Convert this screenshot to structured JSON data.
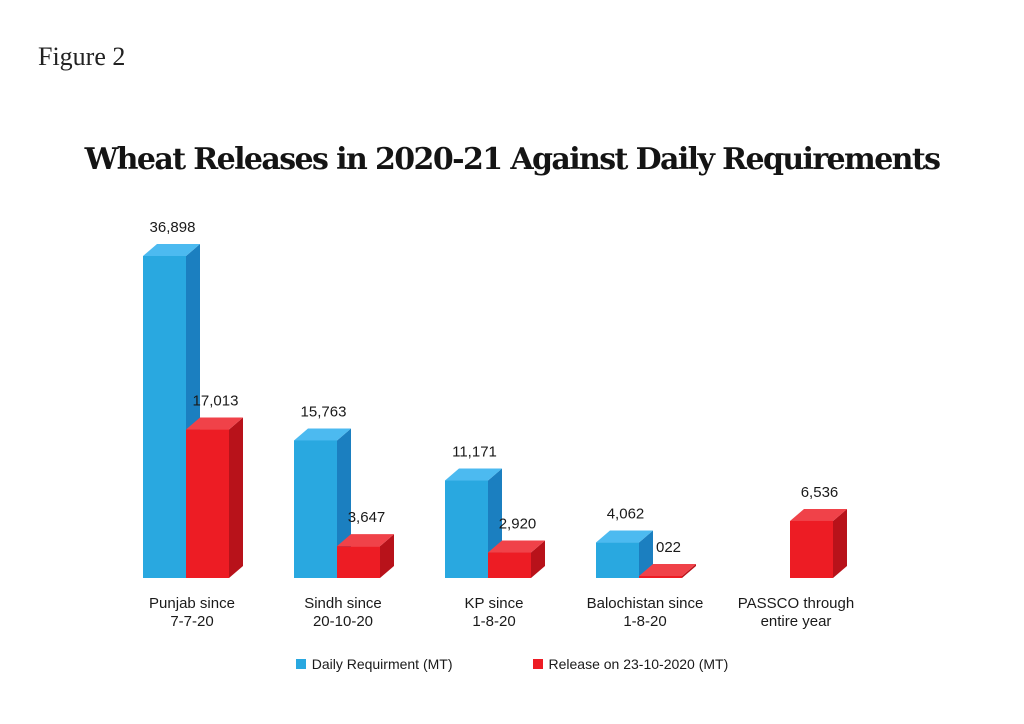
{
  "figure_label": "Figure 2",
  "chart_data": {
    "type": "bar",
    "title": "Wheat Releases in 2020-21 Against Daily Requirements",
    "categories": [
      [
        "Punjab since",
        "7-7-20"
      ],
      [
        "Sindh since",
        "20-10-20"
      ],
      [
        "KP since",
        "1-8-20"
      ],
      [
        "Balochistan since",
        "1-8-20"
      ],
      [
        "PASSCO through",
        "entire year"
      ]
    ],
    "series": [
      {
        "name": "Daily Requirment (MT)",
        "color": "#29a8e0",
        "values": [
          36898,
          15763,
          11171,
          4062,
          null
        ],
        "labels": [
          "36,898",
          "15,763",
          "11,171",
          "4,062",
          ""
        ]
      },
      {
        "name": "Release on 23-10-2020 (MT)",
        "color": "#ed1c24",
        "values": [
          17013,
          3647,
          2920,
          22,
          6536
        ],
        "labels": [
          "17,013",
          "3,647",
          "2,920",
          "022",
          "6,536"
        ]
      }
    ],
    "ylim": [
      0,
      36898
    ],
    "grid": false,
    "legend": "bottom"
  }
}
